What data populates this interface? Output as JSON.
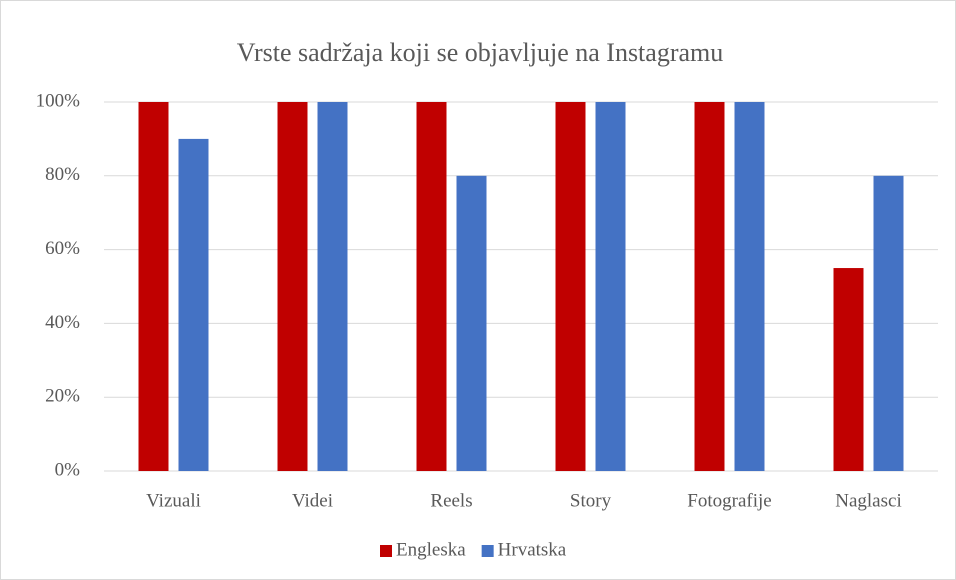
{
  "chart_data": {
    "type": "bar",
    "title": "Vrste sadržaja koji se objavljuje na Instagramu",
    "categories": [
      "Vizuali",
      "Videi",
      "Reels",
      "Story",
      "Fotografije",
      "Naglasci"
    ],
    "series": [
      {
        "name": "Engleska",
        "color": "#c00000",
        "values": [
          100,
          100,
          100,
          100,
          100,
          55
        ]
      },
      {
        "name": "Hrvatska",
        "color": "#4472c4",
        "values": [
          90,
          100,
          80,
          100,
          100,
          80
        ]
      }
    ],
    "ylim": [
      0,
      100
    ],
    "yticks": [
      {
        "value": 0,
        "label": "0%"
      },
      {
        "value": 20,
        "label": "20%"
      },
      {
        "value": 40,
        "label": "40%"
      },
      {
        "value": 60,
        "label": "60%"
      },
      {
        "value": 80,
        "label": "80%"
      },
      {
        "value": 100,
        "label": "100%"
      }
    ],
    "grid": true,
    "legend": "bottom"
  }
}
